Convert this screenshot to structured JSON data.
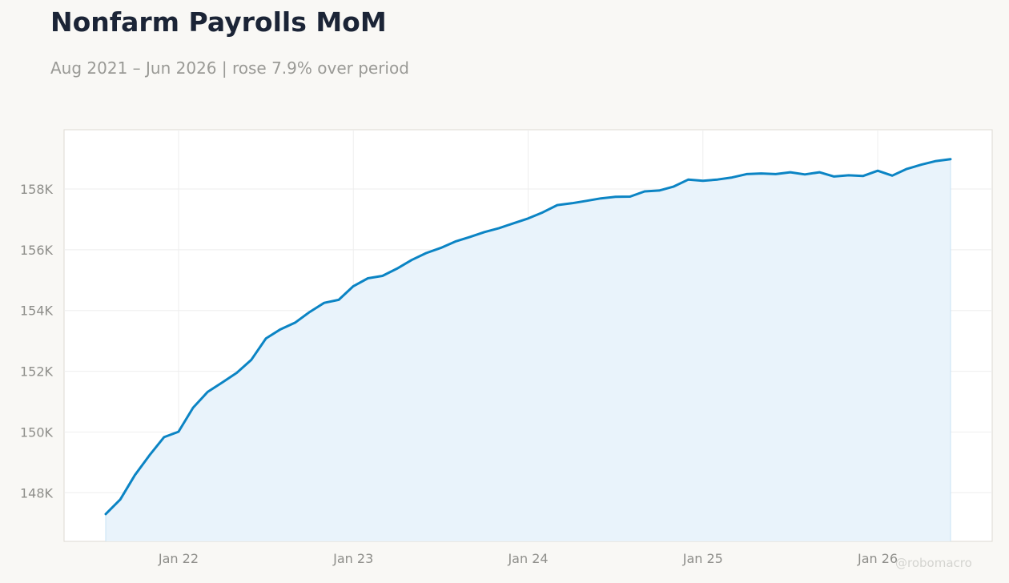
{
  "title": "Nonfarm Payrolls MoM",
  "subtitle": "Aug 2021 – Jun 2026 | rose 7.9% over period",
  "watermark": "@robomacro",
  "colors": {
    "line": "#0b84c4",
    "fill": "#e9f3fb",
    "grid": "#eeeeee",
    "plot_bg": "#ffffff",
    "page_bg": "#f9f8f5",
    "tick_text": "#8e8e8a"
  },
  "chart_data": {
    "type": "area",
    "x_start": "2021-08",
    "x_end": "2026-06",
    "x_ticks": [
      {
        "label": "Jan 22",
        "date": "2022-01"
      },
      {
        "label": "Jan 23",
        "date": "2023-01"
      },
      {
        "label": "Jan 24",
        "date": "2024-01"
      },
      {
        "label": "Jan 25",
        "date": "2025-01"
      },
      {
        "label": "Jan 26",
        "date": "2026-01"
      }
    ],
    "y_ticks": [
      {
        "label": "148K",
        "value": 148000
      },
      {
        "label": "150K",
        "value": 150000
      },
      {
        "label": "152K",
        "value": 152000
      },
      {
        "label": "154K",
        "value": 154000
      },
      {
        "label": "156K",
        "value": 156000
      },
      {
        "label": "158K",
        "value": 158000
      }
    ],
    "ylim": [
      146400,
      159950
    ],
    "grid": true,
    "legend": "none",
    "series": [
      {
        "values": [
          147300,
          147780,
          148580,
          149230,
          149830,
          150010,
          150800,
          151320,
          151630,
          151950,
          152380,
          153080,
          153380,
          153600,
          153950,
          154250,
          154350,
          154800,
          155060,
          155140,
          155380,
          155660,
          155890,
          156060,
          156270,
          156420,
          156580,
          156710,
          156870,
          157030,
          157230,
          157470,
          157530,
          157610,
          157690,
          157740,
          157750,
          157920,
          157950,
          158080,
          158310,
          158270,
          158310,
          158380,
          158490,
          158510,
          158490,
          158550,
          158480,
          158550,
          158410,
          158450,
          158430,
          158600,
          158440,
          158660,
          158800,
          158920,
          158980
        ]
      }
    ]
  }
}
